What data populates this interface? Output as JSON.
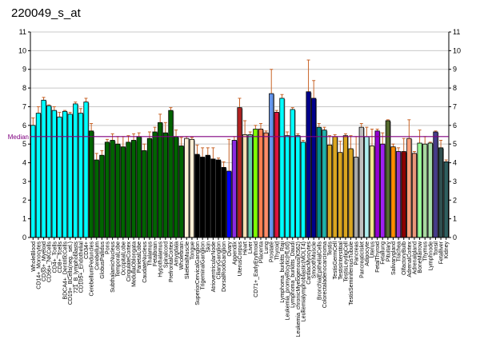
{
  "chart_data": {
    "type": "bar",
    "title": "220049_s_at",
    "ylim": [
      0,
      11
    ],
    "yticks": [
      0,
      1,
      2,
      3,
      4,
      5,
      6,
      7,
      8,
      9,
      10,
      11
    ],
    "median": 5.4,
    "median_label": "Median",
    "median_color": "#800080",
    "grid": true,
    "categories": [
      "WholeBlood",
      "CD14+_Monocytes",
      "CD33+_Myeloid",
      "CD56+_NKCells",
      "CD4+_Tcells",
      "CD8+_Tcells",
      "BDCA4+_DentriticCells",
      "CD19+_BCells(neg._sel.)",
      "721_B_lymphoblasts",
      "CD105+_Endothelial",
      "CD34+",
      "CerebellumPeduncles",
      "Cerebellum",
      "GlobusPallidus",
      "Pons",
      "SubthalamicNucleus",
      "TemporalLobe",
      "OccipitalLobe",
      "CingulateCortex",
      "MedullaOblongata",
      "ParietalLobe",
      "CaudateNucleus",
      "Thalamus",
      "Fetalbrain",
      "Hypothalamus",
      "Spinalcord",
      "PrefrontalCortex",
      "Amygdala",
      "Wholebrain",
      "SkeletalMuscle",
      "Tongue",
      "SuperiorCervicalGanglion",
      "TrigeminalGanglion",
      "Skin",
      "AtrioventricularNode",
      "CiliaryGanglion",
      "DorsalRootGanglion",
      "Ovary",
      "Appendix",
      "UterusCorpus",
      "Heart",
      "Liver",
      "CD71+_EarlyErythroid",
      "Placenta",
      "Lung",
      "Prostate",
      "Thyroid",
      "Lymphoma_burkitts_Raji",
      "Leukemia_promyelocytic(HL60)",
      "Lymphoma_burkitts_Daudi",
      "Leukemia_chronicMyelogenous(K562)",
      "Leukemialymphoblastic(MOLT4)",
      "CardiacMyocytes",
      "SmoothMuscle",
      "BronchialEpithelialCells",
      "Colorectaladenocarcinoma",
      "Testis",
      "TestisGermCell",
      "TestisInterstitial",
      "TestisLeydigCell",
      "TestisSeminiferousTubule",
      "Pancreas",
      "PancreaticIslet",
      "Adipocyte",
      "Uterus",
      "FetalThyroid",
      "Fetallung",
      "Pituitary",
      "Salivarygland",
      "Trachea",
      "OlfactoryBulb",
      "AdrenalCortex",
      "Adrenalgland",
      "BoneMarrow",
      "Thymus",
      "Lymphnode",
      "Tonsil",
      "Fetalliver",
      "Kidney"
    ],
    "values": [
      6.0,
      6.65,
      7.35,
      7.05,
      6.8,
      6.45,
      6.75,
      6.6,
      7.15,
      6.65,
      7.25,
      5.7,
      4.15,
      4.4,
      5.1,
      5.2,
      5.0,
      4.85,
      5.1,
      5.2,
      5.4,
      4.65,
      5.3,
      5.65,
      6.15,
      5.6,
      6.8,
      5.4,
      4.9,
      5.3,
      5.25,
      4.45,
      4.3,
      4.4,
      4.2,
      4.15,
      3.75,
      3.55,
      5.2,
      6.95,
      5.5,
      5.5,
      5.8,
      5.8,
      5.6,
      7.7,
      6.7,
      7.45,
      5.45,
      6.85,
      5.45,
      5.1,
      7.8,
      7.45,
      5.9,
      5.75,
      4.95,
      5.4,
      4.55,
      5.45,
      4.75,
      4.3,
      5.9,
      5.4,
      4.9,
      5.7,
      5.0,
      6.25,
      4.85,
      4.6,
      4.6,
      5.3,
      4.5,
      5.05,
      5.0,
      5.05,
      5.65,
      4.8,
      4.05
    ],
    "errors": [
      0.4,
      0.35,
      0.15,
      0.05,
      0.2,
      0.25,
      0.05,
      0.1,
      0.1,
      0.25,
      0.2,
      0.4,
      0.35,
      0.25,
      0.15,
      0.35,
      0.4,
      0.55,
      0.35,
      0.35,
      0.2,
      0.35,
      0.35,
      0.25,
      0.45,
      0.55,
      0.15,
      0.35,
      0.45,
      0.1,
      0.1,
      0.5,
      0.5,
      0.4,
      0.6,
      0.1,
      0.3,
      1.7,
      0.2,
      0.5,
      0.75,
      0.15,
      0.2,
      0.3,
      0.1,
      1.3,
      0.1,
      0.2,
      0.2,
      0.1,
      0.1,
      0.1,
      1.7,
      0.95,
      0.2,
      0.15,
      0.5,
      0.1,
      0.6,
      0.1,
      0.7,
      1.1,
      0.2,
      0.5,
      0.9,
      0.1,
      0.6,
      0.05,
      0.15,
      0.2,
      0.7,
      1.0,
      0.1,
      0.7,
      0.4,
      0.05,
      0.05,
      0.4,
      0.1
    ],
    "colors": [
      "#00ffff",
      "#00ffff",
      "#00ffff",
      "#00ffff",
      "#00ffff",
      "#00ffff",
      "#00ffff",
      "#00ffff",
      "#00ffff",
      "#00ffff",
      "#00ffff",
      "#006400",
      "#006400",
      "#006400",
      "#006400",
      "#006400",
      "#006400",
      "#006400",
      "#006400",
      "#006400",
      "#006400",
      "#006400",
      "#006400",
      "#006400",
      "#006400",
      "#006400",
      "#006400",
      "#006400",
      "#006400",
      "#ffefd5",
      "#ffefd5",
      "#000000",
      "#000000",
      "#000000",
      "#000000",
      "#000000",
      "#000000",
      "#0000ff",
      "#8a2be2",
      "#b22222",
      "#f5deb3",
      "#66cdaa",
      "#7fff00",
      "#ff7f50",
      "#ff8c69",
      "#6495ed",
      "#dc143c",
      "#00ffff",
      "#00ffff",
      "#00ffff",
      "#00ffff",
      "#00ffff",
      "#00008b",
      "#00008b",
      "#008b8b",
      "#20b2aa",
      "#daa520",
      "#daa520",
      "#daa520",
      "#daa520",
      "#daa520",
      "#a9a9a9",
      "#c0c0c0",
      "#afeeee",
      "#f0e68c",
      "#9400d3",
      "#a020f0",
      "#556b2f",
      "#ff8c00",
      "#9932cc",
      "#8b0000",
      "#ffa07a",
      "#e9967a",
      "#98fb98",
      "#a8d8a0",
      "#a8e0a8",
      "#483d8b",
      "#2f4f4f",
      "#2f5f5f"
    ]
  }
}
